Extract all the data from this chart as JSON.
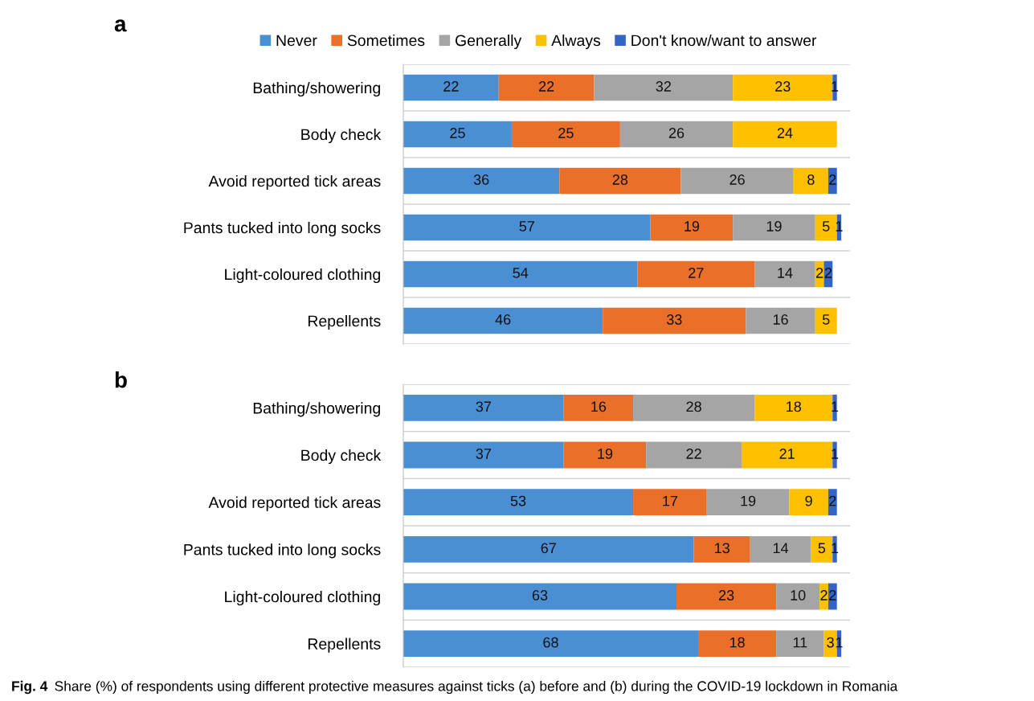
{
  "chart_data": [
    {
      "type": "bar",
      "title": "a",
      "orientation": "horizontal",
      "stacked": true,
      "data_labels": true,
      "legend": "top",
      "grid": "y",
      "tick_labels": "y",
      "categories": [
        "Bathing/showering",
        "Body check",
        "Avoid reported tick areas",
        "Pants tucked into long socks",
        "Light-coloured clothing",
        "Repellents"
      ],
      "series": [
        {
          "name": "Never",
          "color": "#4a8fd4",
          "values": [
            22,
            25,
            36,
            57,
            54,
            46
          ]
        },
        {
          "name": "Sometimes",
          "color": "#ea6f28",
          "values": [
            22,
            25,
            28,
            19,
            27,
            33
          ]
        },
        {
          "name": "Generally",
          "color": "#a5a5a5",
          "values": [
            32,
            26,
            26,
            19,
            14,
            16
          ]
        },
        {
          "name": "Always",
          "color": "#ffc000",
          "values": [
            23,
            24,
            8,
            5,
            2,
            5
          ]
        },
        {
          "name": "Don't know/want to answer",
          "color": "#3464c4",
          "values": [
            1,
            null,
            2,
            1,
            2,
            null
          ]
        }
      ]
    },
    {
      "type": "bar",
      "title": "b",
      "orientation": "horizontal",
      "stacked": true,
      "data_labels": true,
      "grid": "y",
      "tick_labels": "y",
      "categories": [
        "Bathing/showering",
        "Body check",
        "Avoid reported tick areas",
        "Pants tucked into long socks",
        "Light-coloured clothing",
        "Repellents"
      ],
      "series": [
        {
          "color": "#4a8fd4",
          "values": [
            37,
            37,
            53,
            67,
            63,
            68
          ]
        },
        {
          "color": "#ea6f28",
          "values": [
            16,
            19,
            17,
            13,
            23,
            18
          ]
        },
        {
          "color": "#a5a5a5",
          "values": [
            28,
            22,
            19,
            14,
            10,
            11
          ]
        },
        {
          "color": "#ffc000",
          "values": [
            18,
            21,
            9,
            5,
            2,
            3
          ]
        },
        {
          "color": "#3464c4",
          "values": [
            1,
            1,
            2,
            1,
            2,
            1
          ]
        }
      ],
      "annotations": [
        "Fig. 4",
        "Share (%) of respondents using different protective measures against ticks (a) before and (b) during the COVID-19 lockdown in Romania"
      ]
    }
  ]
}
